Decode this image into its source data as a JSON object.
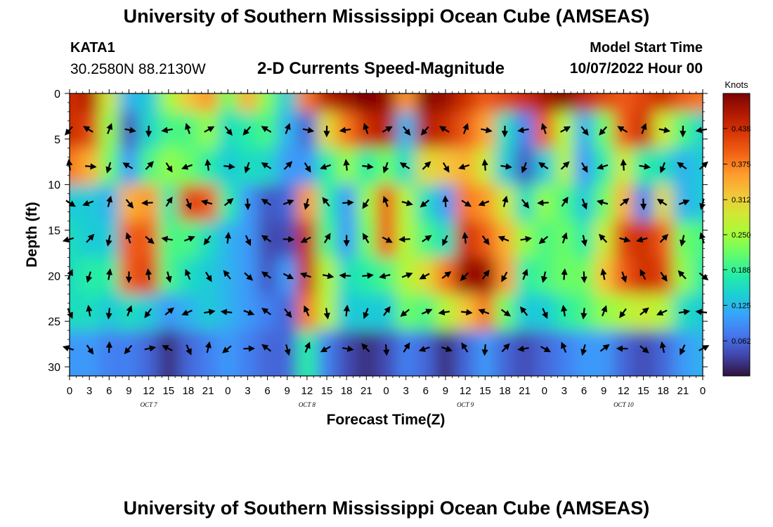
{
  "header": {
    "title": "University of Southern Mississippi Ocean Cube (AMSEAS)",
    "station": "KATA1",
    "coords": "30.2580N  88.2130W",
    "subtitle": "2-D Currents Speed-Magnitude",
    "model_start_label": "Model Start Time",
    "model_start_value": "10/07/2022 Hour 00"
  },
  "footer": {
    "title": "University of Southern Mississippi Ocean Cube (AMSEAS)"
  },
  "chart_data": {
    "type": "heatmap",
    "xlabel": "Forecast Time(Z)",
    "ylabel": "Depth (ft)",
    "x_ticks": [
      "0",
      "3",
      "6",
      "9",
      "12",
      "15",
      "18",
      "21",
      "0",
      "3",
      "6",
      "9",
      "12",
      "15",
      "18",
      "21",
      "0",
      "3",
      "6",
      "9",
      "12",
      "15",
      "18",
      "21",
      "0",
      "3",
      "6",
      "9",
      "12",
      "15",
      "18",
      "21",
      "0"
    ],
    "x_range_hours": [
      0,
      96
    ],
    "day_labels": [
      "OCT 7",
      "OCT 8",
      "OCT 9",
      "OCT 10"
    ],
    "y_ticks": [
      0,
      5,
      10,
      15,
      20,
      25,
      30
    ],
    "ylim": [
      0,
      31
    ],
    "colorbar": {
      "title": "Knots",
      "ticks": [
        "0.438",
        "0.375",
        "0.312",
        "0.250",
        "0.188",
        "0.125",
        "0.062"
      ],
      "range": [
        0,
        0.5
      ]
    },
    "depths_ft": [
      0,
      4,
      8,
      12,
      16,
      20,
      24,
      28
    ],
    "hours": [
      0,
      3,
      6,
      9,
      12,
      15,
      18,
      21,
      24,
      27,
      30,
      33,
      36,
      39,
      42,
      45,
      48,
      51,
      54,
      57,
      60,
      63,
      66,
      69,
      72,
      75,
      78,
      81,
      84,
      87,
      90,
      93,
      96
    ],
    "speed_knots": [
      [
        0.44,
        0.46,
        0.28,
        0.12,
        0.14,
        0.25,
        0.32,
        0.36,
        0.22,
        0.34,
        0.23,
        0.14,
        0.38,
        0.46,
        0.48,
        0.5,
        0.48,
        0.36,
        0.49,
        0.48,
        0.44,
        0.4,
        0.42,
        0.44,
        0.47,
        0.49,
        0.45,
        0.42,
        0.4,
        0.42,
        0.44,
        0.4,
        0.38
      ],
      [
        0.44,
        0.42,
        0.24,
        0.05,
        0.15,
        0.2,
        0.2,
        0.24,
        0.16,
        0.18,
        0.2,
        0.12,
        0.06,
        0.3,
        0.38,
        0.44,
        0.46,
        0.12,
        0.46,
        0.44,
        0.4,
        0.35,
        0.16,
        0.08,
        0.4,
        0.26,
        0.12,
        0.22,
        0.4,
        0.44,
        0.28,
        0.2,
        0.15
      ],
      [
        0.38,
        0.34,
        0.22,
        0.1,
        0.2,
        0.24,
        0.22,
        0.18,
        0.14,
        0.16,
        0.15,
        0.1,
        0.1,
        0.18,
        0.24,
        0.18,
        0.22,
        0.16,
        0.3,
        0.32,
        0.34,
        0.28,
        0.14,
        0.05,
        0.14,
        0.26,
        0.1,
        0.18,
        0.28,
        0.18,
        0.16,
        0.12,
        0.14
      ],
      [
        0.14,
        0.14,
        0.12,
        0.34,
        0.36,
        0.18,
        0.42,
        0.4,
        0.18,
        0.1,
        0.05,
        0.06,
        0.36,
        0.18,
        0.1,
        0.24,
        0.4,
        0.26,
        0.16,
        0.1,
        0.38,
        0.36,
        0.28,
        0.16,
        0.24,
        0.2,
        0.14,
        0.22,
        0.34,
        0.08,
        0.3,
        0.12,
        0.14
      ],
      [
        0.16,
        0.14,
        0.14,
        0.4,
        0.4,
        0.2,
        0.2,
        0.16,
        0.12,
        0.1,
        0.04,
        0.04,
        0.44,
        0.2,
        0.1,
        0.22,
        0.4,
        0.26,
        0.2,
        0.16,
        0.44,
        0.4,
        0.34,
        0.24,
        0.2,
        0.22,
        0.18,
        0.28,
        0.42,
        0.44,
        0.4,
        0.22,
        0.2
      ],
      [
        0.16,
        0.18,
        0.18,
        0.4,
        0.42,
        0.2,
        0.16,
        0.14,
        0.12,
        0.1,
        0.05,
        0.1,
        0.44,
        0.26,
        0.16,
        0.18,
        0.2,
        0.26,
        0.3,
        0.38,
        0.48,
        0.48,
        0.36,
        0.18,
        0.2,
        0.22,
        0.22,
        0.32,
        0.4,
        0.44,
        0.42,
        0.24,
        0.18
      ],
      [
        0.16,
        0.16,
        0.14,
        0.16,
        0.14,
        0.1,
        0.12,
        0.14,
        0.12,
        0.1,
        0.08,
        0.06,
        0.38,
        0.26,
        0.14,
        0.14,
        0.14,
        0.22,
        0.2,
        0.26,
        0.32,
        0.38,
        0.22,
        0.14,
        0.14,
        0.18,
        0.2,
        0.24,
        0.26,
        0.28,
        0.26,
        0.16,
        0.14
      ],
      [
        0.1,
        0.1,
        0.08,
        0.08,
        0.06,
        0.02,
        0.06,
        0.08,
        0.1,
        0.08,
        0.06,
        0.06,
        0.18,
        0.08,
        0.04,
        0.02,
        0.04,
        0.08,
        0.06,
        0.02,
        0.06,
        0.1,
        0.06,
        0.04,
        0.06,
        0.08,
        0.1,
        0.1,
        0.06,
        0.04,
        0.06,
        0.1,
        0.12
      ]
    ]
  },
  "colors": {
    "scale": [
      "#30123b",
      "#4145ab",
      "#4675ed",
      "#39a2fc",
      "#1bcfd4",
      "#24eca6",
      "#61fc6c",
      "#a4fc3b",
      "#d1e834",
      "#f3c63a",
      "#fe9b2d",
      "#f36315",
      "#d93806",
      "#b11901",
      "#7a0402"
    ],
    "arrow": "#000000"
  }
}
